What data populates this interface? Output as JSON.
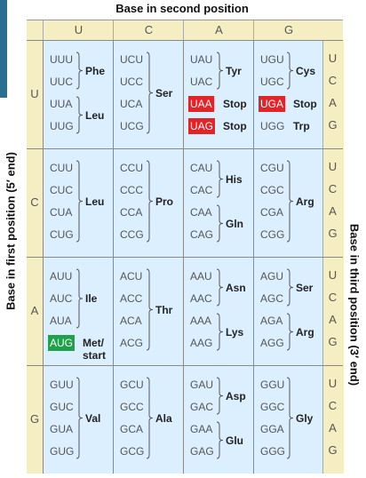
{
  "titles": {
    "second": "Base in second position",
    "first": "Base in first position (5′ end)",
    "third": "Base in third position (3′ end)"
  },
  "bases": [
    "U",
    "C",
    "A",
    "G"
  ],
  "colors": {
    "cell": "#dcefff",
    "margin": "#f6eec3",
    "stop": "#e02427",
    "start": "#20a04a"
  },
  "cells": [
    {
      "codons": [
        "UUU",
        "UUC",
        "UUA",
        "UUG"
      ],
      "groups": [
        {
          "label": "Phe",
          "span": [
            0,
            1
          ]
        },
        {
          "label": "Leu",
          "span": [
            2,
            3
          ]
        }
      ]
    },
    {
      "codons": [
        "UCU",
        "UCC",
        "UCA",
        "UCG"
      ],
      "groups": [
        {
          "label": "Ser",
          "span": [
            0,
            3
          ]
        }
      ]
    },
    {
      "codons": [
        "UAU",
        "UAC",
        "UAA",
        "UAG"
      ],
      "groups": [
        {
          "label": "Tyr",
          "span": [
            0,
            1
          ]
        },
        {
          "label": "Stop",
          "span": [
            2,
            2
          ],
          "single": true
        },
        {
          "label": "Stop",
          "span": [
            3,
            3
          ],
          "single": true
        }
      ],
      "stop": [
        2,
        3
      ]
    },
    {
      "codons": [
        "UGU",
        "UGC",
        "UGA",
        "UGG"
      ],
      "groups": [
        {
          "label": "Cys",
          "span": [
            0,
            1
          ]
        },
        {
          "label": "Stop",
          "span": [
            2,
            2
          ],
          "single": true
        },
        {
          "label": "Trp",
          "span": [
            3,
            3
          ],
          "single": true
        }
      ],
      "stop": [
        2
      ]
    },
    {
      "codons": [
        "CUU",
        "CUC",
        "CUA",
        "CUG"
      ],
      "groups": [
        {
          "label": "Leu",
          "span": [
            0,
            3
          ]
        }
      ]
    },
    {
      "codons": [
        "CCU",
        "CCC",
        "CCA",
        "CCG"
      ],
      "groups": [
        {
          "label": "Pro",
          "span": [
            0,
            3
          ]
        }
      ]
    },
    {
      "codons": [
        "CAU",
        "CAC",
        "CAA",
        "CAG"
      ],
      "groups": [
        {
          "label": "His",
          "span": [
            0,
            1
          ]
        },
        {
          "label": "Gln",
          "span": [
            2,
            3
          ]
        }
      ]
    },
    {
      "codons": [
        "CGU",
        "CGC",
        "CGA",
        "CGG"
      ],
      "groups": [
        {
          "label": "Arg",
          "span": [
            0,
            3
          ]
        }
      ]
    },
    {
      "codons": [
        "AUU",
        "AUC",
        "AUA",
        "AUG"
      ],
      "groups": [
        {
          "label": "Ile",
          "span": [
            0,
            2
          ]
        },
        {
          "label": "Met/\nstart",
          "span": [
            3,
            3
          ],
          "single": true
        }
      ],
      "start": [
        3
      ]
    },
    {
      "codons": [
        "ACU",
        "ACC",
        "ACA",
        "ACG"
      ],
      "groups": [
        {
          "label": "Thr",
          "span": [
            0,
            3
          ]
        }
      ]
    },
    {
      "codons": [
        "AAU",
        "AAC",
        "AAA",
        "AAG"
      ],
      "groups": [
        {
          "label": "Asn",
          "span": [
            0,
            1
          ]
        },
        {
          "label": "Lys",
          "span": [
            2,
            3
          ]
        }
      ]
    },
    {
      "codons": [
        "AGU",
        "AGC",
        "AGA",
        "AGG"
      ],
      "groups": [
        {
          "label": "Ser",
          "span": [
            0,
            1
          ]
        },
        {
          "label": "Arg",
          "span": [
            2,
            3
          ]
        }
      ]
    },
    {
      "codons": [
        "GUU",
        "GUC",
        "GUA",
        "GUG"
      ],
      "groups": [
        {
          "label": "Val",
          "span": [
            0,
            3
          ]
        }
      ]
    },
    {
      "codons": [
        "GCU",
        "GCC",
        "GCA",
        "GCG"
      ],
      "groups": [
        {
          "label": "Ala",
          "span": [
            0,
            3
          ]
        }
      ]
    },
    {
      "codons": [
        "GAU",
        "GAC",
        "GAA",
        "GAG"
      ],
      "groups": [
        {
          "label": "Asp",
          "span": [
            0,
            1
          ]
        },
        {
          "label": "Glu",
          "span": [
            2,
            3
          ]
        }
      ]
    },
    {
      "codons": [
        "GGU",
        "GGC",
        "GGA",
        "GGG"
      ],
      "groups": [
        {
          "label": "Gly",
          "span": [
            0,
            3
          ]
        }
      ]
    }
  ]
}
